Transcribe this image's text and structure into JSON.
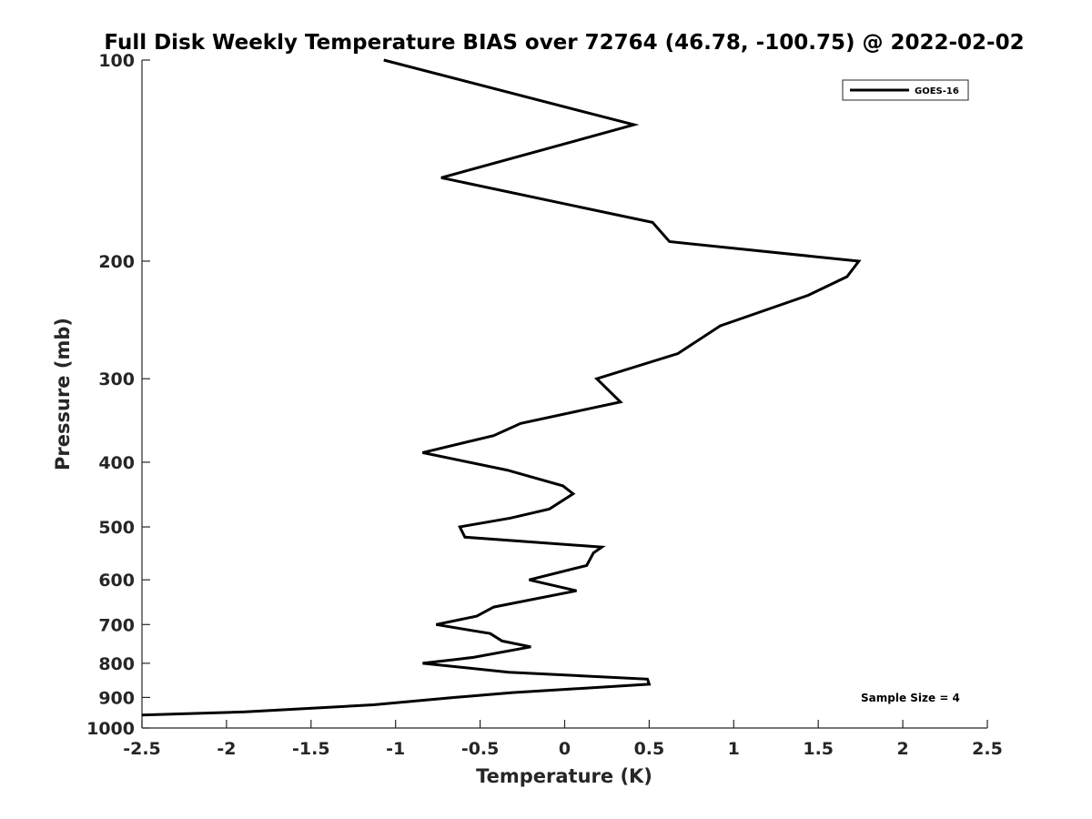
{
  "chart_data": {
    "type": "line",
    "title": "Full Disk Weekly Temperature BIAS over 72764 (46.78, -100.75) @ 2022-02-02",
    "xlabel": "Temperature (K)",
    "ylabel": "Pressure (mb)",
    "xlim": [
      -2.5,
      2.5
    ],
    "ylim": [
      100,
      1000
    ],
    "y_scale": "log",
    "y_reversed": true,
    "xticks": [
      -2.5,
      -2,
      -1.5,
      -1,
      -0.5,
      0,
      0.5,
      1,
      1.5,
      2,
      2.5
    ],
    "xtick_labels": [
      "-2.5",
      "-2",
      "-1.5",
      "-1",
      "-0.5",
      "0",
      "0.5",
      "1",
      "1.5",
      "2",
      "2.5"
    ],
    "yticks": [
      100,
      200,
      300,
      400,
      500,
      600,
      700,
      800,
      900,
      1000
    ],
    "ytick_labels": [
      "100",
      "200",
      "300",
      "400",
      "500",
      "600",
      "700",
      "800",
      "900",
      "1000"
    ],
    "grid": false,
    "legend_position": "top-right",
    "annotation": "Sample Size = 4",
    "series": [
      {
        "name": "GOES-16",
        "color": "#000000",
        "points": [
          {
            "x": -1.07,
            "p": 100
          },
          {
            "x": 0.41,
            "p": 125
          },
          {
            "x": -0.73,
            "p": 150
          },
          {
            "x": 0.52,
            "p": 175
          },
          {
            "x": 0.62,
            "p": 187
          },
          {
            "x": 1.74,
            "p": 200
          },
          {
            "x": 1.67,
            "p": 211
          },
          {
            "x": 1.44,
            "p": 225
          },
          {
            "x": 0.92,
            "p": 250
          },
          {
            "x": 0.67,
            "p": 275
          },
          {
            "x": 0.19,
            "p": 300
          },
          {
            "x": 0.33,
            "p": 325
          },
          {
            "x": -0.26,
            "p": 350
          },
          {
            "x": -0.42,
            "p": 365
          },
          {
            "x": -0.84,
            "p": 387
          },
          {
            "x": -0.34,
            "p": 411
          },
          {
            "x": -0.01,
            "p": 434
          },
          {
            "x": 0.05,
            "p": 446
          },
          {
            "x": -0.09,
            "p": 470
          },
          {
            "x": -0.32,
            "p": 485
          },
          {
            "x": -0.62,
            "p": 500
          },
          {
            "x": -0.59,
            "p": 518
          },
          {
            "x": 0.22,
            "p": 536
          },
          {
            "x": 0.17,
            "p": 547
          },
          {
            "x": 0.13,
            "p": 571
          },
          {
            "x": -0.21,
            "p": 600
          },
          {
            "x": 0.07,
            "p": 623
          },
          {
            "x": -0.42,
            "p": 659
          },
          {
            "x": -0.52,
            "p": 680
          },
          {
            "x": -0.76,
            "p": 700
          },
          {
            "x": -0.44,
            "p": 722
          },
          {
            "x": -0.37,
            "p": 741
          },
          {
            "x": -0.2,
            "p": 756
          },
          {
            "x": -0.54,
            "p": 784
          },
          {
            "x": -0.84,
            "p": 800
          },
          {
            "x": -0.33,
            "p": 825
          },
          {
            "x": 0.49,
            "p": 845
          },
          {
            "x": 0.5,
            "p": 860
          },
          {
            "x": -0.31,
            "p": 885
          },
          {
            "x": -0.65,
            "p": 900
          },
          {
            "x": -1.13,
            "p": 923
          },
          {
            "x": -1.89,
            "p": 946
          },
          {
            "x": -2.5,
            "p": 956
          }
        ]
      }
    ]
  }
}
